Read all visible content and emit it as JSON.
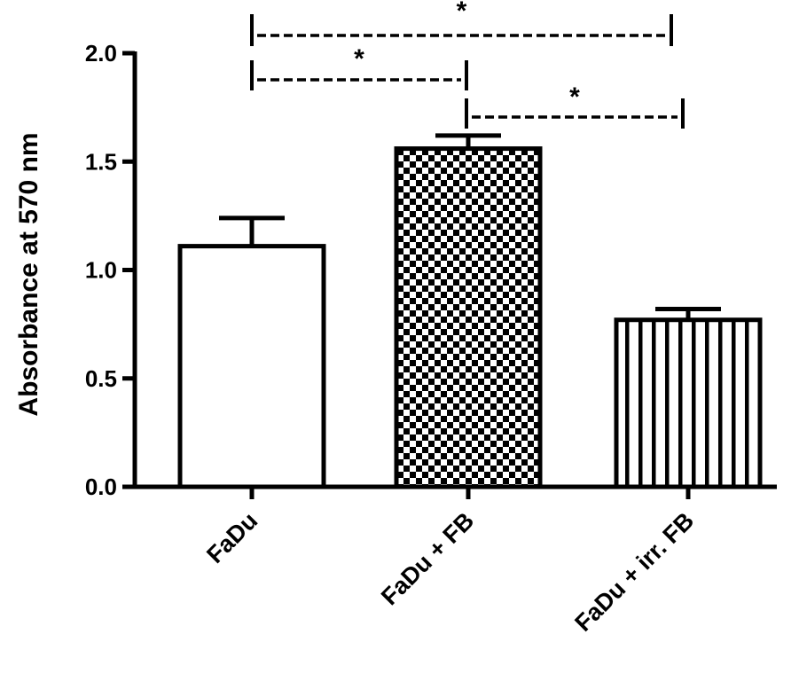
{
  "chart_data": {
    "type": "bar",
    "categories": [
      "FaDu",
      "FaDu + FB",
      "FaDu + irr. FB"
    ],
    "values": [
      1.11,
      1.56,
      0.77
    ],
    "errors": [
      0.13,
      0.06,
      0.05
    ],
    "patterns": [
      "none",
      "checker",
      "vertical-stripes"
    ],
    "ylabel": "Absorbance at 570 nm",
    "xlabel": "",
    "title": "",
    "ylim": [
      0,
      2.0
    ],
    "yticks": [
      0.0,
      0.5,
      1.0,
      1.5,
      2.0
    ],
    "ytick_labels": [
      "0.0",
      "0.5",
      "1.0",
      "1.5",
      "2.0"
    ],
    "significance": [
      {
        "from": 0,
        "to": 2,
        "label": "*"
      },
      {
        "from": 0,
        "to": 1,
        "label": "*"
      },
      {
        "from": 1,
        "to": 2,
        "label": "*"
      }
    ],
    "grid": false,
    "colors": {
      "stroke": "#000000",
      "fill": "#ffffff"
    }
  }
}
